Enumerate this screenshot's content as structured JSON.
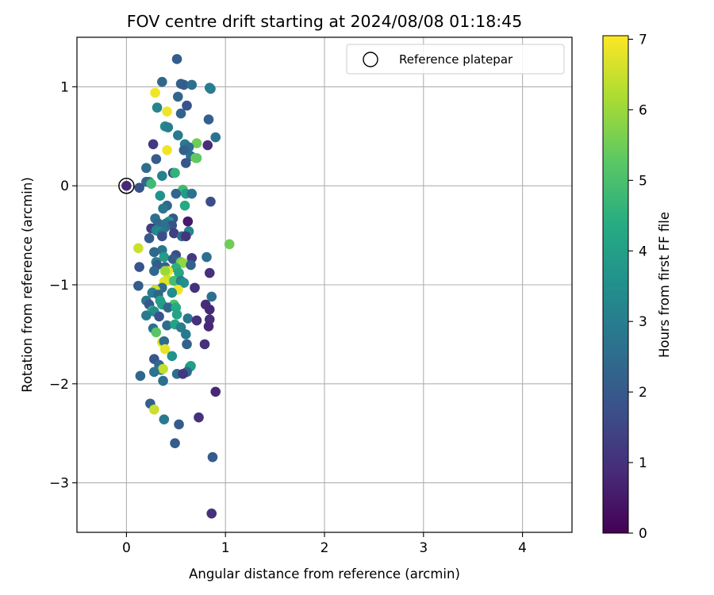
{
  "chart_data": {
    "type": "scatter",
    "title": "FOV centre drift starting at 2024/08/08 01:18:45",
    "xlabel": "Angular distance from reference (arcmin)",
    "ylabel": "Rotation from reference (arcmin)",
    "xlim": [
      -0.5,
      4.5
    ],
    "ylim": [
      -3.5,
      1.5
    ],
    "xticks": [
      "0",
      "1",
      "2",
      "3",
      "4"
    ],
    "yticks": [
      "1",
      "0",
      "−1",
      "−2",
      "−3"
    ],
    "grid": true,
    "legend": {
      "placement": "top-right",
      "entries": [
        "Reference platepar"
      ]
    },
    "colorbar": {
      "label": "Hours from first FF file",
      "range": [
        0,
        7.05
      ],
      "ticks": [
        "0",
        "1",
        "2",
        "3",
        "4",
        "5",
        "6",
        "7"
      ],
      "colormap": "viridis"
    },
    "reference_point": {
      "x": 0,
      "y": 0
    },
    "points": [
      [
        0.51,
        1.28,
        2.1
      ],
      [
        0.36,
        1.05,
        2.4
      ],
      [
        0.55,
        1.03,
        2.2
      ],
      [
        0.58,
        1.02,
        2.1
      ],
      [
        0.66,
        1.02,
        2.6
      ],
      [
        0.29,
        0.94,
        6.9
      ],
      [
        0.85,
        0.98,
        2.8
      ],
      [
        0.84,
        0.99,
        3.0
      ],
      [
        0.52,
        0.9,
        2.3
      ],
      [
        0.61,
        0.81,
        1.8
      ],
      [
        0.31,
        0.79,
        3.2
      ],
      [
        0.41,
        0.75,
        6.9
      ],
      [
        0.55,
        0.73,
        2.3
      ],
      [
        0.83,
        0.67,
        2.2
      ],
      [
        0.39,
        0.6,
        3.4
      ],
      [
        0.42,
        0.59,
        3.0
      ],
      [
        0.52,
        0.51,
        2.9
      ],
      [
        0.71,
        0.43,
        5.5
      ],
      [
        0.59,
        0.42,
        2.9
      ],
      [
        0.63,
        0.39,
        2.6
      ],
      [
        0.58,
        0.36,
        2.2
      ],
      [
        0.65,
        0.3,
        2.6
      ],
      [
        0.7,
        0.28,
        5.8
      ],
      [
        0.71,
        0.28,
        5.3
      ],
      [
        0.82,
        0.41,
        0.9
      ],
      [
        0.27,
        0.42,
        1.2
      ],
      [
        0.41,
        0.36,
        6.9
      ],
      [
        0.9,
        0.49,
        2.7
      ],
      [
        0.3,
        0.27,
        2.1
      ],
      [
        0.6,
        0.23,
        1.9
      ],
      [
        0.2,
        0.18,
        2.5
      ],
      [
        0.47,
        0.13,
        1.4
      ],
      [
        0.49,
        0.13,
        4.6
      ],
      [
        0.36,
        0.1,
        3.1
      ],
      [
        0.23,
        0.04,
        3.4
      ],
      [
        0.2,
        0.04,
        2.4
      ],
      [
        0.25,
        0.02,
        4.8
      ],
      [
        0.13,
        -0.02,
        1.8
      ],
      [
        0.0,
        0.0,
        0.8
      ],
      [
        0.57,
        -0.04,
        4.8
      ],
      [
        0.6,
        -0.08,
        3.9
      ],
      [
        0.66,
        -0.08,
        2.7
      ],
      [
        0.5,
        -0.08,
        2.3
      ],
      [
        0.34,
        -0.1,
        3.6
      ],
      [
        0.85,
        -0.16,
        1.7
      ],
      [
        0.59,
        -0.2,
        4.3
      ],
      [
        0.41,
        -0.2,
        2.4
      ],
      [
        0.37,
        -0.23,
        2.8
      ],
      [
        0.29,
        -0.33,
        2.6
      ],
      [
        0.47,
        -0.33,
        1.9
      ],
      [
        0.43,
        -0.36,
        3.7
      ],
      [
        0.62,
        -0.36,
        0.5
      ],
      [
        0.32,
        -0.38,
        2.4
      ],
      [
        0.4,
        -0.38,
        2.8
      ],
      [
        0.46,
        -0.4,
        1.8
      ],
      [
        0.39,
        -0.42,
        2.6
      ],
      [
        0.25,
        -0.43,
        1.3
      ],
      [
        0.3,
        -0.45,
        3.1
      ],
      [
        0.34,
        -0.47,
        3.5
      ],
      [
        0.48,
        -0.48,
        1.3
      ],
      [
        0.36,
        -0.48,
        2.8
      ],
      [
        0.63,
        -0.46,
        3.3
      ],
      [
        0.23,
        -0.53,
        2.0
      ],
      [
        0.36,
        -0.51,
        1.7
      ],
      [
        0.56,
        -0.51,
        2.6
      ],
      [
        0.6,
        -0.51,
        1.1
      ],
      [
        1.04,
        -0.59,
        5.5
      ],
      [
        0.12,
        -0.63,
        6.5
      ],
      [
        0.36,
        -0.65,
        2.8
      ],
      [
        0.28,
        -0.67,
        2.4
      ],
      [
        0.5,
        -0.7,
        1.7
      ],
      [
        0.38,
        -0.72,
        3.9
      ],
      [
        0.81,
        -0.72,
        2.6
      ],
      [
        0.47,
        -0.74,
        2.1
      ],
      [
        0.66,
        -0.73,
        1.2
      ],
      [
        0.3,
        -0.77,
        3.1
      ],
      [
        0.55,
        -0.77,
        5.4
      ],
      [
        0.57,
        -0.78,
        5.9
      ],
      [
        0.31,
        -0.8,
        2.0
      ],
      [
        0.39,
        -0.82,
        2.2
      ],
      [
        0.13,
        -0.82,
        1.8
      ],
      [
        0.5,
        -0.83,
        4.5
      ],
      [
        0.65,
        -0.8,
        2.2
      ],
      [
        0.42,
        -0.86,
        6.9
      ],
      [
        0.39,
        -0.86,
        6.0
      ],
      [
        0.28,
        -0.86,
        2.4
      ],
      [
        0.53,
        -0.88,
        4.2
      ],
      [
        0.84,
        -0.88,
        1.0
      ],
      [
        0.41,
        -0.95,
        6.5
      ],
      [
        0.38,
        -0.97,
        6.7
      ],
      [
        0.48,
        -0.96,
        4.9
      ],
      [
        0.55,
        -0.96,
        3.0
      ],
      [
        0.58,
        -0.98,
        3.5
      ],
      [
        0.12,
        -1.01,
        2.1
      ],
      [
        0.69,
        -1.03,
        1.0
      ],
      [
        0.36,
        -1.03,
        2.5
      ],
      [
        0.29,
        -1.05,
        6.5
      ],
      [
        0.52,
        -1.05,
        6.9
      ],
      [
        0.46,
        -1.08,
        3.4
      ],
      [
        0.26,
        -1.08,
        3.0
      ],
      [
        0.32,
        -1.1,
        2.3
      ],
      [
        0.2,
        -1.16,
        2.8
      ],
      [
        0.34,
        -1.16,
        4.0
      ],
      [
        0.36,
        -1.2,
        3.9
      ],
      [
        0.48,
        -1.2,
        5.0
      ],
      [
        0.23,
        -1.2,
        1.9
      ],
      [
        0.8,
        -1.2,
        0.9
      ],
      [
        0.86,
        -1.12,
        2.6
      ],
      [
        0.42,
        -1.23,
        2.4
      ],
      [
        0.84,
        -1.25,
        0.8
      ],
      [
        0.5,
        -1.23,
        4.3
      ],
      [
        0.26,
        -1.26,
        4.5
      ],
      [
        0.28,
        -1.27,
        3.4
      ],
      [
        0.2,
        -1.31,
        2.9
      ],
      [
        0.33,
        -1.32,
        1.8
      ],
      [
        0.51,
        -1.3,
        4.1
      ],
      [
        0.62,
        -1.34,
        2.8
      ],
      [
        0.84,
        -1.35,
        0.9
      ],
      [
        0.71,
        -1.36,
        1.0
      ],
      [
        0.41,
        -1.41,
        2.5
      ],
      [
        0.49,
        -1.4,
        4.1
      ],
      [
        0.55,
        -1.43,
        3.0
      ],
      [
        0.83,
        -1.42,
        0.8
      ],
      [
        0.27,
        -1.44,
        2.6
      ],
      [
        0.3,
        -1.48,
        5.2
      ],
      [
        0.6,
        -1.5,
        2.9
      ],
      [
        0.36,
        -1.58,
        6.7
      ],
      [
        0.38,
        -1.57,
        2.5
      ],
      [
        0.61,
        -1.6,
        2.2
      ],
      [
        0.79,
        -1.6,
        1.0
      ],
      [
        0.39,
        -1.65,
        6.8
      ],
      [
        0.46,
        -1.72,
        3.6
      ],
      [
        0.28,
        -1.75,
        1.9
      ],
      [
        0.33,
        -1.81,
        2.4
      ],
      [
        0.35,
        -1.86,
        3.2
      ],
      [
        0.37,
        -1.85,
        6.4
      ],
      [
        0.64,
        -1.83,
        3.8
      ],
      [
        0.65,
        -1.82,
        3.9
      ],
      [
        0.61,
        -1.88,
        2.4
      ],
      [
        0.51,
        -1.9,
        2.6
      ],
      [
        0.28,
        -1.88,
        2.7
      ],
      [
        0.57,
        -1.9,
        1.2
      ],
      [
        0.14,
        -1.92,
        2.4
      ],
      [
        0.37,
        -1.97,
        2.6
      ],
      [
        0.9,
        -2.08,
        0.8
      ],
      [
        0.24,
        -2.2,
        2.2
      ],
      [
        0.28,
        -2.26,
        6.5
      ],
      [
        0.38,
        -2.36,
        2.9
      ],
      [
        0.73,
        -2.34,
        1.0
      ],
      [
        0.53,
        -2.41,
        2.1
      ],
      [
        0.49,
        -2.6,
        2.1
      ],
      [
        0.87,
        -2.74,
        2.0
      ],
      [
        0.86,
        -3.31,
        1.0
      ]
    ]
  }
}
